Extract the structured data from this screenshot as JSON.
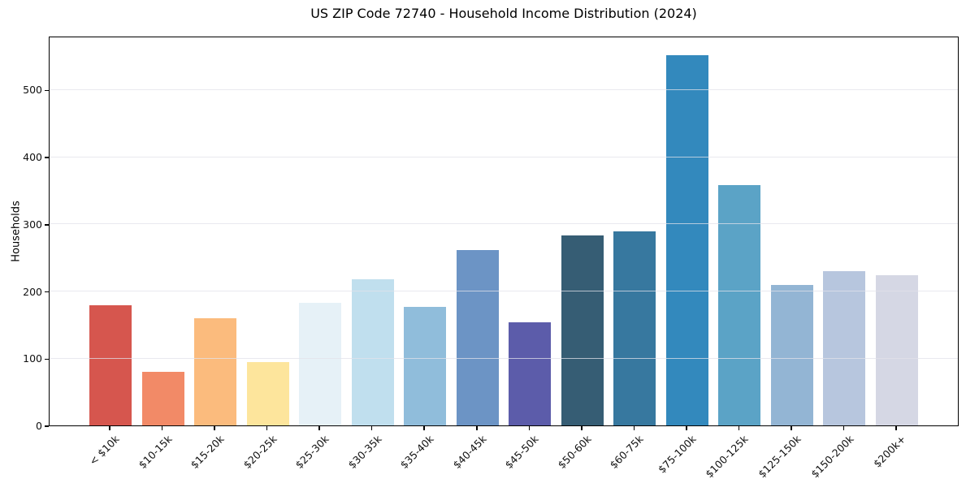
{
  "chart_data": {
    "type": "bar",
    "title": "US ZIP Code 72740 - Household Income Distribution (2024)",
    "xlabel": "",
    "ylabel": "Households",
    "categories": [
      "< $10k",
      "$10-15k",
      "$15-20k",
      "$20-25k",
      "$25-30k",
      "$30-35k",
      "$35-40k",
      "$40-45k",
      "$45-50k",
      "$50-60k",
      "$60-75k",
      "$75-100k",
      "$100-125k",
      "$125-150k",
      "$150-200k",
      "$200k+"
    ],
    "values": [
      179,
      80,
      160,
      94,
      183,
      217,
      177,
      261,
      154,
      283,
      289,
      551,
      358,
      209,
      230,
      224
    ],
    "bar_colors": [
      "#d6564e",
      "#f28a67",
      "#fbbb7d",
      "#fde59c",
      "#e6f1f7",
      "#c0dfee",
      "#90bddb",
      "#6c94c5",
      "#5c5caa",
      "#365d74",
      "#37789f",
      "#3389bd",
      "#5ba3c6",
      "#93b5d4",
      "#b7c6de",
      "#d5d7e4"
    ],
    "ylim": [
      0,
      580
    ],
    "yticks": [
      0,
      100,
      200,
      300,
      400,
      500
    ],
    "grid": "horizontal",
    "gridline_color": "rgba(226,226,234,0.75)",
    "legend": "none",
    "background": "#ffffff",
    "spine_color": "#000000"
  }
}
